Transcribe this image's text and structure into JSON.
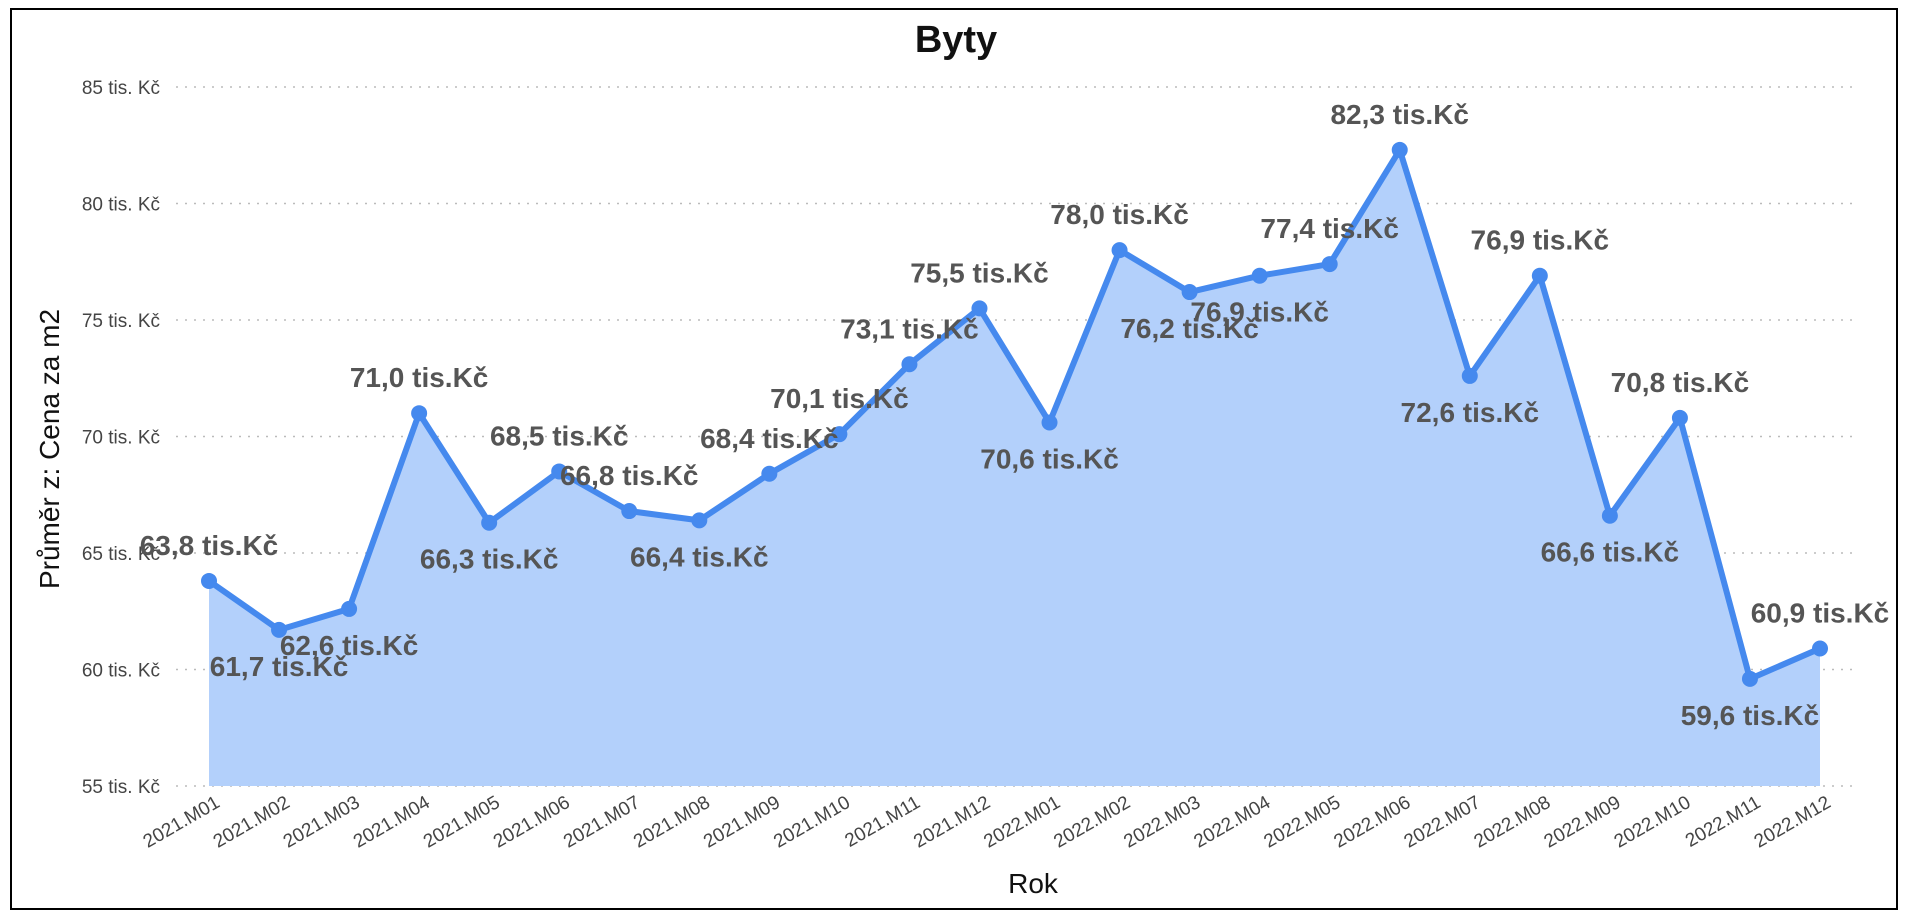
{
  "chart_data": {
    "type": "area",
    "title": "Byty",
    "xlabel": "Rok",
    "ylabel": "Průměr z: Cena za m2",
    "ylim": [
      55,
      85
    ],
    "y_ticks": [
      55,
      60,
      65,
      70,
      75,
      80,
      85
    ],
    "y_tick_labels": [
      "55 tis. Kč",
      "60 tis. Kč",
      "65 tis. Kč",
      "70 tis. Kč",
      "75 tis. Kč",
      "80 tis. Kč",
      "85 tis. Kč"
    ],
    "grid": "horizontal dotted",
    "categories": [
      "2021.M01",
      "2021.M02",
      "2021.M03",
      "2021.M04",
      "2021.M05",
      "2021.M06",
      "2021.M07",
      "2021.M08",
      "2021.M09",
      "2021.M10",
      "2021.M11",
      "2021.M12",
      "2022.M01",
      "2022.M02",
      "2022.M03",
      "2022.M04",
      "2022.M05",
      "2022.M06",
      "2022.M07",
      "2022.M08",
      "2022.M09",
      "2022.M10",
      "2022.M11",
      "2022.M12"
    ],
    "series": [
      {
        "values": [
          63.8,
          61.7,
          62.6,
          71.0,
          66.3,
          68.5,
          66.8,
          66.4,
          68.4,
          70.1,
          73.1,
          75.5,
          70.6,
          78.0,
          76.2,
          76.9,
          77.4,
          82.3,
          72.6,
          76.9,
          66.6,
          70.8,
          59.6,
          60.9
        ],
        "data_labels": [
          "63,8 tis.Kč",
          "61,7 tis.Kč",
          "62,6 tis.Kč",
          "71,0 tis.Kč",
          "66,3 tis.Kč",
          "68,5 tis.Kč",
          "66,8 tis.Kč",
          "66,4 tis.Kč",
          "68,4 tis.Kč",
          "70,1 tis.Kč",
          "73,1 tis.Kč",
          "75,5 tis.Kč",
          "70,6 tis.Kč",
          "78,0 tis.Kč",
          "76,2 tis.Kč",
          "76,9 tis.Kč",
          "77,4 tis.Kč",
          "82,3 tis.Kč",
          "72,6 tis.Kč",
          "76,9 tis.Kč",
          "66,6 tis.Kč",
          "70,8 tis.Kč",
          "59,6 tis.Kč",
          "60,9 tis.Kč"
        ],
        "label_positions": [
          "above",
          "below",
          "below",
          "above",
          "below",
          "above",
          "above",
          "below",
          "above",
          "above",
          "above",
          "above",
          "below",
          "above",
          "below",
          "below",
          "above",
          "above",
          "below",
          "above",
          "below",
          "above",
          "below",
          "above"
        ]
      }
    ],
    "colors": {
      "line": "#4589EE",
      "fill": "#B3D0FB",
      "label": "#555555"
    }
  }
}
